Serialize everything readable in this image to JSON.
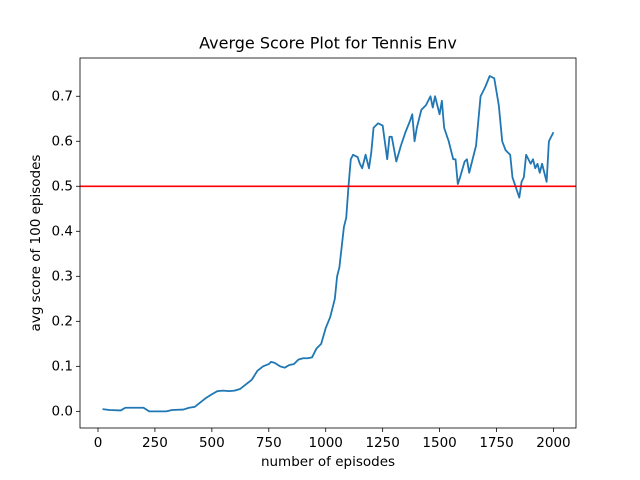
{
  "chart_data": {
    "type": "line",
    "title": "Averge Score Plot for Tennis Env",
    "x_label": "number of episodes",
    "y_label": "avg score of 100 episodes",
    "x": [
      20,
      50,
      100,
      120,
      150,
      200,
      225,
      250,
      300,
      325,
      375,
      400,
      425,
      450,
      475,
      500,
      525,
      550,
      575,
      600,
      625,
      650,
      675,
      700,
      725,
      750,
      760,
      775,
      800,
      820,
      840,
      860,
      880,
      900,
      920,
      940,
      960,
      980,
      1000,
      1020,
      1040,
      1050,
      1060,
      1080,
      1090,
      1100,
      1110,
      1120,
      1140,
      1150,
      1160,
      1175,
      1190,
      1200,
      1210,
      1220,
      1230,
      1250,
      1270,
      1280,
      1290,
      1310,
      1330,
      1350,
      1370,
      1380,
      1390,
      1400,
      1420,
      1440,
      1460,
      1470,
      1480,
      1500,
      1510,
      1520,
      1540,
      1560,
      1570,
      1580,
      1590,
      1610,
      1620,
      1630,
      1650,
      1660,
      1680,
      1690,
      1700,
      1720,
      1740,
      1760,
      1775,
      1790,
      1810,
      1820,
      1840,
      1850,
      1860,
      1870,
      1880,
      1900,
      1910,
      1920,
      1930,
      1940,
      1950,
      1960,
      1970,
      1980,
      2000
    ],
    "series": [
      {
        "color": "#1f77b4",
        "values": [
          0.005,
          0.003,
          0.002,
          0.008,
          0.008,
          0.008,
          0.0,
          0.0,
          0.0,
          0.003,
          0.004,
          0.008,
          0.01,
          0.02,
          0.03,
          0.038,
          0.045,
          0.046,
          0.045,
          0.046,
          0.05,
          0.06,
          0.07,
          0.09,
          0.1,
          0.105,
          0.11,
          0.108,
          0.1,
          0.097,
          0.103,
          0.105,
          0.115,
          0.118,
          0.118,
          0.12,
          0.14,
          0.15,
          0.185,
          0.21,
          0.25,
          0.3,
          0.32,
          0.41,
          0.43,
          0.5,
          0.56,
          0.57,
          0.565,
          0.55,
          0.54,
          0.57,
          0.54,
          0.575,
          0.63,
          0.635,
          0.64,
          0.635,
          0.56,
          0.61,
          0.61,
          0.555,
          0.59,
          0.62,
          0.645,
          0.66,
          0.6,
          0.63,
          0.67,
          0.68,
          0.7,
          0.675,
          0.7,
          0.66,
          0.69,
          0.63,
          0.6,
          0.56,
          0.56,
          0.505,
          0.52,
          0.555,
          0.56,
          0.53,
          0.57,
          0.59,
          0.7,
          0.71,
          0.72,
          0.745,
          0.74,
          0.68,
          0.6,
          0.58,
          0.57,
          0.52,
          0.49,
          0.475,
          0.51,
          0.52,
          0.57,
          0.55,
          0.56,
          0.54,
          0.55,
          0.53,
          0.55,
          0.53,
          0.51,
          0.6,
          0.62
        ]
      }
    ],
    "hline": 0.5,
    "hline_color": "red",
    "xlim": [
      -79,
      2099
    ],
    "ylim": [
      -0.037,
      0.785
    ],
    "xticks": [
      0,
      250,
      500,
      750,
      1000,
      1250,
      1500,
      1750,
      2000
    ],
    "yticks": [
      {
        "value": 0,
        "label": "0.0"
      },
      0.1,
      0.2,
      0.3,
      0.4,
      0.5,
      0.6,
      0.7
    ]
  }
}
